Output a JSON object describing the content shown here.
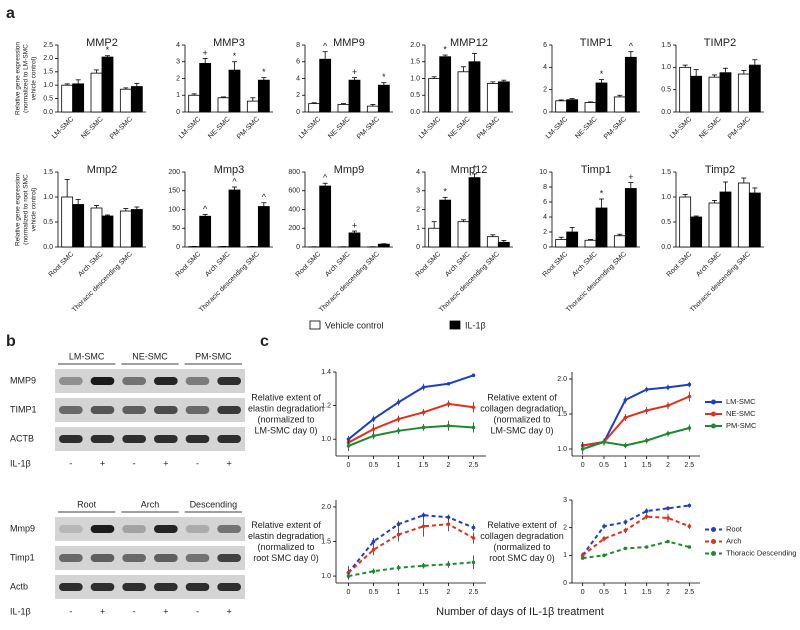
{
  "panel_labels": [
    "a",
    "b",
    "c"
  ],
  "blots": [
    {
      "groups": [
        "LM-SMC",
        "NE-SMC",
        "PM-SMC"
      ],
      "rows": [
        "MMP9",
        "TIMP1",
        "ACTB"
      ],
      "treatment_label": "IL-1β",
      "lanes": [
        "-",
        "+",
        "-",
        "+",
        "-",
        "+"
      ]
    },
    {
      "groups": [
        "Root",
        "Arch",
        "Descending"
      ],
      "rows": [
        "Mmp9",
        "Timp1",
        "Actb"
      ],
      "treatment_label": "IL-1β",
      "lanes": [
        "-",
        "+",
        "-",
        "+",
        "-",
        "+"
      ]
    }
  ],
  "chart_data": [
    {
      "type": "bar",
      "title": "MMP2",
      "ylabel": [
        "Relative gene expression",
        "(normalized to LM-SMC",
        "vehicle control)"
      ],
      "categories": [
        "LM-SMC",
        "NE-SMC",
        "PM-SMC"
      ],
      "series": [
        {
          "name": "Vehicle control",
          "color": "#ffffff",
          "values": [
            1.0,
            1.45,
            0.85
          ],
          "errors": [
            0.05,
            0.12,
            0.05
          ]
        },
        {
          "name": "IL-1β",
          "color": "#000000",
          "values": [
            1.05,
            2.05,
            0.95
          ],
          "errors": [
            0.15,
            0.05,
            0.12
          ],
          "markers": [
            null,
            "*",
            null
          ]
        }
      ],
      "ylim": [
        0,
        2.5
      ],
      "yticks": [
        {
          "value": 0,
          "label": "0.0"
        },
        0.5,
        {
          "value": 1,
          "label": "1.0"
        },
        1.5,
        {
          "value": 2,
          "label": "2.0"
        },
        2.5
      ]
    },
    {
      "type": "bar",
      "title": "MMP3",
      "categories": [
        "LM-SMC",
        "NE-SMC",
        "PM-SMC"
      ],
      "series": [
        {
          "name": "Vehicle control",
          "color": "#ffffff",
          "values": [
            1.0,
            0.85,
            0.65
          ],
          "errors": [
            0.08,
            0.05,
            0.2
          ]
        },
        {
          "name": "IL-1β",
          "color": "#000000",
          "values": [
            2.9,
            2.5,
            1.9
          ],
          "errors": [
            0.3,
            0.5,
            0.15
          ],
          "markers": [
            "+",
            "*",
            "*"
          ]
        }
      ],
      "ylim": [
        0,
        4
      ],
      "yticks": [
        0,
        1,
        2,
        3,
        4
      ]
    },
    {
      "type": "bar",
      "title": "MMP9",
      "categories": [
        "LM-SMC",
        "NE-SMC",
        "PM-SMC"
      ],
      "series": [
        {
          "name": "Vehicle control",
          "color": "#ffffff",
          "values": [
            1.0,
            0.9,
            0.7
          ],
          "errors": [
            0.1,
            0.1,
            0.2
          ]
        },
        {
          "name": "IL-1β",
          "color": "#000000",
          "values": [
            6.3,
            3.8,
            3.2
          ],
          "errors": [
            0.9,
            0.3,
            0.3
          ],
          "markers": [
            "^",
            "+",
            "*"
          ]
        }
      ],
      "ylim": [
        0,
        8
      ],
      "yticks": [
        0,
        2,
        4,
        6,
        8
      ]
    },
    {
      "type": "bar",
      "title": "MMP12",
      "categories": [
        "LM-SMC",
        "NE-SMC",
        "PM-SMC"
      ],
      "series": [
        {
          "name": "Vehicle control",
          "color": "#ffffff",
          "values": [
            1.0,
            1.2,
            0.85
          ],
          "errors": [
            0.05,
            0.15,
            0.05
          ]
        },
        {
          "name": "IL-1β",
          "color": "#000000",
          "values": [
            1.65,
            1.5,
            0.9
          ],
          "errors": [
            0.05,
            0.25,
            0.05
          ],
          "markers": [
            "*",
            null,
            null
          ]
        }
      ],
      "ylim": [
        0,
        2
      ],
      "yticks": [
        {
          "value": 0,
          "label": "0.0"
        },
        0.5,
        {
          "value": 1,
          "label": "1.0"
        },
        1.5,
        {
          "value": 2,
          "label": "2.0"
        }
      ]
    },
    {
      "type": "bar",
      "title": "TIMP1",
      "categories": [
        "LM-SMC",
        "NE-SMC",
        "PM-SMC"
      ],
      "series": [
        {
          "name": "Vehicle control",
          "color": "#ffffff",
          "values": [
            1.0,
            0.85,
            1.35
          ],
          "errors": [
            0.08,
            0.05,
            0.15
          ]
        },
        {
          "name": "IL-1β",
          "color": "#000000",
          "values": [
            1.1,
            2.6,
            4.9
          ],
          "errors": [
            0.1,
            0.3,
            0.5
          ],
          "markers": [
            null,
            "*",
            "^"
          ]
        }
      ],
      "ylim": [
        0,
        6
      ],
      "yticks": [
        0,
        2,
        4,
        6
      ]
    },
    {
      "type": "bar",
      "title": "TIMP2",
      "categories": [
        "LM-SMC",
        "NE-SMC",
        "PM-SMC"
      ],
      "series": [
        {
          "name": "Vehicle control",
          "color": "#ffffff",
          "values": [
            1.0,
            0.78,
            0.85
          ],
          "errors": [
            0.05,
            0.05,
            0.08
          ]
        },
        {
          "name": "IL-1β",
          "color": "#000000",
          "values": [
            0.8,
            0.88,
            1.05
          ],
          "errors": [
            0.15,
            0.1,
            0.12
          ]
        }
      ],
      "ylim": [
        0,
        1.5
      ],
      "yticks": [
        {
          "value": 0,
          "label": "0.0"
        },
        0.5,
        {
          "value": 1,
          "label": "1.0"
        },
        1.5
      ]
    },
    {
      "type": "bar",
      "title": "Mmp2",
      "ylabel": [
        "Relative gene expression",
        "(normalized to root SMC",
        "vehicle control)"
      ],
      "categories": [
        "Root SMC",
        "Arch SMC",
        "Thoracic descending SMC"
      ],
      "series": [
        {
          "name": "Vehicle control",
          "color": "#ffffff",
          "values": [
            1.0,
            0.78,
            0.72
          ],
          "errors": [
            0.35,
            0.05,
            0.05
          ]
        },
        {
          "name": "IL-1β",
          "color": "#000000",
          "values": [
            0.85,
            0.62,
            0.75
          ],
          "errors": [
            0.1,
            0.02,
            0.05
          ]
        }
      ],
      "ylim": [
        0,
        1.5
      ],
      "yticks": [
        {
          "value": 0,
          "label": "0.0"
        },
        0.5,
        {
          "value": 1,
          "label": "1.0"
        },
        1.5
      ]
    },
    {
      "type": "bar",
      "title": "Mmp3",
      "categories": [
        "Root SMC",
        "Arch SMC",
        "Thoracic descending SMC"
      ],
      "series": [
        {
          "name": "Vehicle control",
          "color": "#ffffff",
          "values": [
            1,
            1,
            1
          ],
          "errors": [
            0.5,
            0.5,
            0.5
          ]
        },
        {
          "name": "IL-1β",
          "color": "#000000",
          "values": [
            82,
            152,
            108
          ],
          "errors": [
            5,
            8,
            10
          ],
          "markers": [
            "^",
            "^",
            "^"
          ]
        }
      ],
      "ylim": [
        0,
        200
      ],
      "yticks": [
        0,
        50,
        100,
        150,
        200
      ]
    },
    {
      "type": "bar",
      "title": "Mmp9",
      "categories": [
        "Root SMC",
        "Arch SMC",
        "Thoracic descending SMC"
      ],
      "series": [
        {
          "name": "Vehicle control",
          "color": "#ffffff",
          "values": [
            1,
            1,
            1
          ],
          "errors": [
            2,
            2,
            2
          ]
        },
        {
          "name": "IL-1β",
          "color": "#000000",
          "values": [
            650,
            150,
            30
          ],
          "errors": [
            30,
            20,
            5
          ],
          "markers": [
            "^",
            "+",
            null
          ]
        }
      ],
      "ylim": [
        0,
        800
      ],
      "yticks": [
        0,
        200,
        400,
        600,
        800
      ]
    },
    {
      "type": "bar",
      "title": "Mmp12",
      "categories": [
        "Root SMC",
        "Arch SMC",
        "Thoracic descending SMC"
      ],
      "series": [
        {
          "name": "Vehicle control",
          "color": "#ffffff",
          "values": [
            1.0,
            1.35,
            0.55
          ],
          "errors": [
            0.35,
            0.1,
            0.1
          ]
        },
        {
          "name": "IL-1β",
          "color": "#000000",
          "values": [
            2.5,
            3.7,
            0.25
          ],
          "errors": [
            0.15,
            0.2,
            0.1
          ],
          "markers": [
            "*",
            "*",
            null
          ]
        }
      ],
      "ylim": [
        0,
        4
      ],
      "yticks": [
        0,
        1,
        2,
        3,
        4
      ]
    },
    {
      "type": "bar",
      "title": "Timp1",
      "categories": [
        "Root SMC",
        "Arch SMC",
        "Thoracic descending SMC"
      ],
      "series": [
        {
          "name": "Vehicle control",
          "color": "#ffffff",
          "values": [
            1.0,
            0.9,
            1.5
          ],
          "errors": [
            0.3,
            0.1,
            0.2
          ]
        },
        {
          "name": "IL-1β",
          "color": "#000000",
          "values": [
            2.0,
            5.2,
            7.8
          ],
          "errors": [
            0.6,
            1.2,
            0.8
          ],
          "markers": [
            null,
            "*",
            "+"
          ]
        }
      ],
      "ylim": [
        0,
        10
      ],
      "yticks": [
        0,
        2,
        4,
        6,
        8,
        10
      ]
    },
    {
      "type": "bar",
      "title": "Timp2",
      "categories": [
        "Root SMC",
        "Arch SMC",
        "Thoracic descending SMC"
      ],
      "series": [
        {
          "name": "Vehicle control",
          "color": "#ffffff",
          "values": [
            1.0,
            0.88,
            1.28
          ],
          "errors": [
            0.05,
            0.05,
            0.1
          ]
        },
        {
          "name": "IL-1β",
          "color": "#000000",
          "values": [
            0.6,
            1.1,
            1.08
          ],
          "errors": [
            0.02,
            0.2,
            0.1
          ]
        }
      ],
      "ylim": [
        0,
        1.5
      ],
      "yticks": [
        {
          "value": 0,
          "label": "0.0"
        },
        0.5,
        {
          "value": 1,
          "label": "1.0"
        },
        1.5
      ]
    },
    {
      "type": "line",
      "ylabel": [
        "Relative extent of",
        "elastin degradation",
        "(normalized to",
        "LM-SMC day 0)"
      ],
      "linestyle": "solid",
      "x": [
        0,
        0.5,
        1,
        1.5,
        2,
        2.5
      ],
      "series": [
        {
          "name": "LM-SMC",
          "color": "#1f3fc4",
          "values": [
            1.0,
            1.12,
            1.22,
            1.31,
            1.33,
            1.38
          ],
          "errors": [
            0.02,
            0.02,
            0.02,
            0.02,
            0.01,
            0.01
          ]
        },
        {
          "name": "NE-SMC",
          "color": "#e0301e",
          "values": [
            0.98,
            1.06,
            1.12,
            1.16,
            1.21,
            1.19
          ],
          "errors": [
            0.02,
            0.03,
            0.02,
            0.02,
            0.02,
            0.03
          ]
        },
        {
          "name": "PM-SMC",
          "color": "#1e8a2e",
          "values": [
            0.96,
            1.02,
            1.05,
            1.07,
            1.08,
            1.07
          ],
          "errors": [
            0.03,
            0.02,
            0.02,
            0.02,
            0.03,
            0.03
          ]
        }
      ],
      "xlim": [
        -0.25,
        2.75
      ],
      "xticks": [
        0,
        0.5,
        1,
        1.5,
        2,
        2.5
      ],
      "ylim": [
        0.9,
        1.4
      ],
      "yticks": [
        {
          "value": 1,
          "label": "1.0"
        },
        1.2,
        1.4
      ]
    },
    {
      "type": "line",
      "ylabel": [
        "Relative extent of",
        "collagen degradation",
        "(normalized to",
        "LM-SMC day 0)"
      ],
      "linestyle": "solid",
      "legend": "right",
      "x": [
        0,
        0.5,
        1,
        1.5,
        2,
        2.5
      ],
      "series": [
        {
          "name": "LM-SMC",
          "color": "#1f3fc4",
          "values": [
            1.05,
            1.1,
            1.7,
            1.85,
            1.88,
            1.92
          ],
          "errors": [
            0.05,
            0.05,
            0.05,
            0.04,
            0.04,
            0.04
          ]
        },
        {
          "name": "NE-SMC",
          "color": "#e0301e",
          "values": [
            1.05,
            1.1,
            1.45,
            1.55,
            1.62,
            1.75
          ],
          "errors": [
            0.05,
            0.05,
            0.05,
            0.05,
            0.05,
            0.07
          ]
        },
        {
          "name": "PM-SMC",
          "color": "#1e8a2e",
          "values": [
            1.0,
            1.1,
            1.05,
            1.12,
            1.22,
            1.3
          ],
          "errors": [
            0.08,
            0.05,
            0.04,
            0.04,
            0.04,
            0.05
          ]
        }
      ],
      "xlim": [
        -0.25,
        2.75
      ],
      "xticks": [
        0,
        0.5,
        1,
        1.5,
        2,
        2.5
      ],
      "ylim": [
        0.9,
        2.1
      ],
      "yticks": [
        {
          "value": 1,
          "label": "1.0"
        },
        1.5,
        {
          "value": 2,
          "label": "2.0"
        }
      ]
    },
    {
      "type": "line",
      "ylabel": [
        "Relative extent of",
        "elastin degradation",
        "(normalized to",
        "root SMC day 0)"
      ],
      "linestyle": "dashed",
      "xlabel": "Number of days of IL-1β treatment",
      "x": [
        0,
        0.5,
        1,
        1.5,
        2,
        2.5
      ],
      "series": [
        {
          "name": "Root",
          "color": "#1f3fc4",
          "values": [
            1.05,
            1.5,
            1.75,
            1.88,
            1.85,
            1.7
          ],
          "errors": [
            0.05,
            0.05,
            0.05,
            0.04,
            0.04,
            0.05
          ]
        },
        {
          "name": "Arch",
          "color": "#e0301e",
          "values": [
            1.05,
            1.38,
            1.6,
            1.72,
            1.75,
            1.55
          ],
          "errors": [
            0.1,
            0.08,
            0.1,
            0.15,
            0.1,
            0.08
          ]
        },
        {
          "name": "Thoracic Descending",
          "color": "#1e8a2e",
          "values": [
            1.0,
            1.07,
            1.12,
            1.15,
            1.17,
            1.2
          ],
          "errors": [
            0.05,
            0.04,
            0.04,
            0.04,
            0.05,
            0.1
          ]
        }
      ],
      "xlim": [
        -0.25,
        2.75
      ],
      "xticks": [
        0,
        0.5,
        1,
        1.5,
        2,
        2.5
      ],
      "ylim": [
        0.9,
        2.1
      ],
      "yticks": [
        {
          "value": 1,
          "label": "1.0"
        },
        1.5,
        {
          "value": 2,
          "label": "2.0"
        }
      ]
    },
    {
      "type": "line",
      "ylabel": [
        "Relative extent of",
        "collagen degradation",
        "(normalized to",
        "root SMC day 0)"
      ],
      "linestyle": "dashed",
      "legend": "right",
      "x": [
        0,
        0.5,
        1,
        1.5,
        2,
        2.5
      ],
      "series": [
        {
          "name": "Root",
          "color": "#1f3fc4",
          "values": [
            1.0,
            2.05,
            2.2,
            2.6,
            2.7,
            2.8
          ],
          "errors": [
            0.1,
            0.1,
            0.1,
            0.1,
            0.08,
            0.08
          ]
        },
        {
          "name": "Arch",
          "color": "#e0301e",
          "values": [
            1.0,
            1.6,
            1.9,
            2.4,
            2.35,
            2.05
          ],
          "errors": [
            0.1,
            0.1,
            0.1,
            0.1,
            0.15,
            0.1
          ]
        },
        {
          "name": "Thoracic Descending",
          "color": "#1e8a2e",
          "values": [
            0.9,
            1.0,
            1.25,
            1.3,
            1.5,
            1.3
          ],
          "errors": [
            0.05,
            0.05,
            0.05,
            0.05,
            0.05,
            0.05
          ]
        }
      ],
      "xlim": [
        -0.25,
        2.75
      ],
      "xticks": [
        0,
        0.5,
        1,
        1.5,
        2,
        2.5
      ],
      "ylim": [
        0,
        3
      ],
      "yticks": [
        0,
        1,
        2,
        3
      ]
    }
  ]
}
